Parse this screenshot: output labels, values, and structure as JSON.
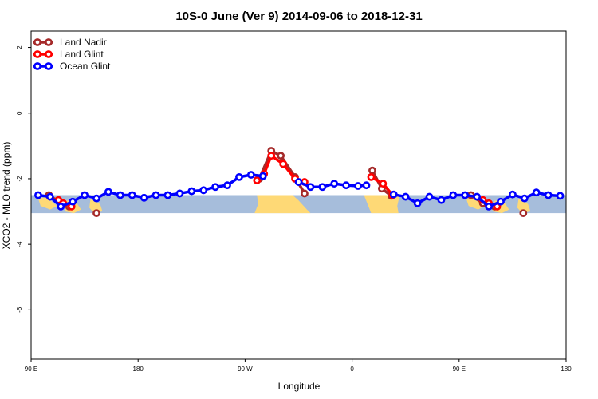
{
  "chart_data": {
    "type": "line",
    "title": "10S-0 June (Ver 9)   2014-09-06 to 2018-12-31",
    "xlabel": "Longitude",
    "ylabel": "XCO2 - MLO trend (ppm)",
    "xlim": [
      90,
      540
    ],
    "ylim": [
      -7.5,
      2.5
    ],
    "x_ticks": [
      {
        "value": 90,
        "label": "90 E"
      },
      {
        "value": 180,
        "label": "180"
      },
      {
        "value": 270,
        "label": "90 W"
      },
      {
        "value": 360,
        "label": "0"
      },
      {
        "value": 450,
        "label": "90 E"
      },
      {
        "value": 540,
        "label": "180"
      }
    ],
    "y_ticks": [
      {
        "value": 2,
        "label": "2"
      },
      {
        "value": 0,
        "label": "0"
      },
      {
        "value": -2,
        "label": "-2"
      },
      {
        "value": -4,
        "label": "-4"
      },
      {
        "value": -6,
        "label": "-6"
      }
    ],
    "map_band": {
      "lat_top": 0,
      "lat_bottom": -10,
      "y_top": -2.5,
      "y_bottom": -3.05,
      "ocean_color": "#a6bddb",
      "land_color": "#fed976"
    },
    "legend": {
      "position": "top-left"
    },
    "series": [
      {
        "name": "Land Nadir",
        "color": "#a52a2a",
        "segments": [
          [
            [
              105,
              -2.5
            ],
            [
              115,
              -2.75
            ],
            [
              122,
              -2.85
            ]
          ],
          [
            [
              145,
              -3.05
            ]
          ],
          [
            [
              282,
              -2.0
            ],
            [
              292,
              -1.15
            ],
            [
              300,
              -1.3
            ],
            [
              312,
              -1.95
            ],
            [
              320,
              -2.45
            ]
          ],
          [
            [
              377,
              -1.75
            ],
            [
              385,
              -2.3
            ],
            [
              393,
              -2.52
            ]
          ],
          [
            [
              460,
              -2.5
            ],
            [
              470,
              -2.75
            ],
            [
              480,
              -2.85
            ]
          ],
          [
            [
              504,
              -3.05
            ]
          ]
        ]
      },
      {
        "name": "Land Glint",
        "color": "#ff0000",
        "segments": [
          [
            [
              113,
              -2.65
            ],
            [
              117,
              -2.75
            ],
            [
              124,
              -2.85
            ]
          ],
          [
            [
              280,
              -2.05
            ],
            [
              286,
              -1.85
            ],
            [
              292,
              -1.3
            ],
            [
              302,
              -1.55
            ],
            [
              312,
              -2.0
            ],
            [
              320,
              -2.1
            ]
          ],
          [
            [
              376,
              -1.95
            ],
            [
              386,
              -2.15
            ],
            [
              394,
              -2.5
            ]
          ],
          [
            [
              470,
              -2.65
            ],
            [
              475,
              -2.75
            ],
            [
              482,
              -2.85
            ]
          ]
        ]
      },
      {
        "name": "Ocean Glint",
        "color": "#0000ff",
        "segments": [
          [
            [
              96,
              -2.5
            ],
            [
              106,
              -2.55
            ],
            [
              115,
              -2.85
            ],
            [
              125,
              -2.7
            ],
            [
              135,
              -2.5
            ],
            [
              145,
              -2.6
            ],
            [
              155,
              -2.4
            ],
            [
              165,
              -2.5
            ],
            [
              175,
              -2.5
            ],
            [
              185,
              -2.58
            ],
            [
              195,
              -2.5
            ],
            [
              205,
              -2.5
            ],
            [
              215,
              -2.45
            ],
            [
              225,
              -2.38
            ],
            [
              235,
              -2.35
            ],
            [
              245,
              -2.25
            ],
            [
              255,
              -2.2
            ],
            [
              265,
              -1.95
            ],
            [
              275,
              -1.88
            ],
            [
              285,
              -1.92
            ]
          ],
          [
            [
              315,
              -2.1
            ],
            [
              325,
              -2.25
            ],
            [
              335,
              -2.25
            ],
            [
              345,
              -2.15
            ],
            [
              355,
              -2.2
            ],
            [
              365,
              -2.22
            ],
            [
              372,
              -2.2
            ]
          ],
          [
            [
              395,
              -2.48
            ],
            [
              405,
              -2.55
            ],
            [
              415,
              -2.75
            ],
            [
              425,
              -2.55
            ],
            [
              435,
              -2.65
            ],
            [
              445,
              -2.5
            ],
            [
              455,
              -2.5
            ],
            [
              465,
              -2.55
            ],
            [
              475,
              -2.85
            ],
            [
              485,
              -2.7
            ],
            [
              495,
              -2.48
            ],
            [
              505,
              -2.6
            ],
            [
              515,
              -2.42
            ],
            [
              525,
              -2.5
            ],
            [
              535,
              -2.52
            ]
          ]
        ]
      }
    ]
  }
}
